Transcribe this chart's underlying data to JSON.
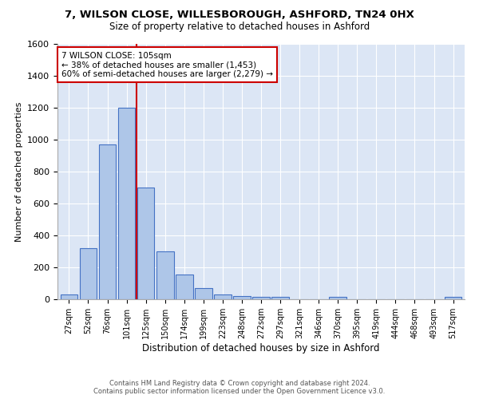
{
  "title_line1": "7, WILSON CLOSE, WILLESBOROUGH, ASHFORD, TN24 0HX",
  "title_line2": "Size of property relative to detached houses in Ashford",
  "xlabel": "Distribution of detached houses by size in Ashford",
  "ylabel": "Number of detached properties",
  "bar_labels": [
    "27sqm",
    "52sqm",
    "76sqm",
    "101sqm",
    "125sqm",
    "150sqm",
    "174sqm",
    "199sqm",
    "223sqm",
    "248sqm",
    "272sqm",
    "297sqm",
    "321sqm",
    "346sqm",
    "370sqm",
    "395sqm",
    "419sqm",
    "444sqm",
    "468sqm",
    "493sqm",
    "517sqm"
  ],
  "bar_values": [
    30,
    320,
    970,
    1200,
    700,
    300,
    155,
    70,
    30,
    20,
    15,
    15,
    0,
    0,
    15,
    0,
    0,
    0,
    0,
    0,
    15
  ],
  "bar_color": "#aec6e8",
  "bar_edge_color": "#4472c4",
  "annotation_text": "7 WILSON CLOSE: 105sqm\n← 38% of detached houses are smaller (1,453)\n60% of semi-detached houses are larger (2,279) →",
  "annotation_box_color": "#ffffff",
  "annotation_box_edge_color": "#cc0000",
  "ref_line_color": "#cc0000",
  "ylim": [
    0,
    1600
  ],
  "yticks": [
    0,
    200,
    400,
    600,
    800,
    1000,
    1200,
    1400,
    1600
  ],
  "footer_line1": "Contains HM Land Registry data © Crown copyright and database right 2024.",
  "footer_line2": "Contains public sector information licensed under the Open Government Licence v3.0.",
  "plot_background": "#dce6f5"
}
